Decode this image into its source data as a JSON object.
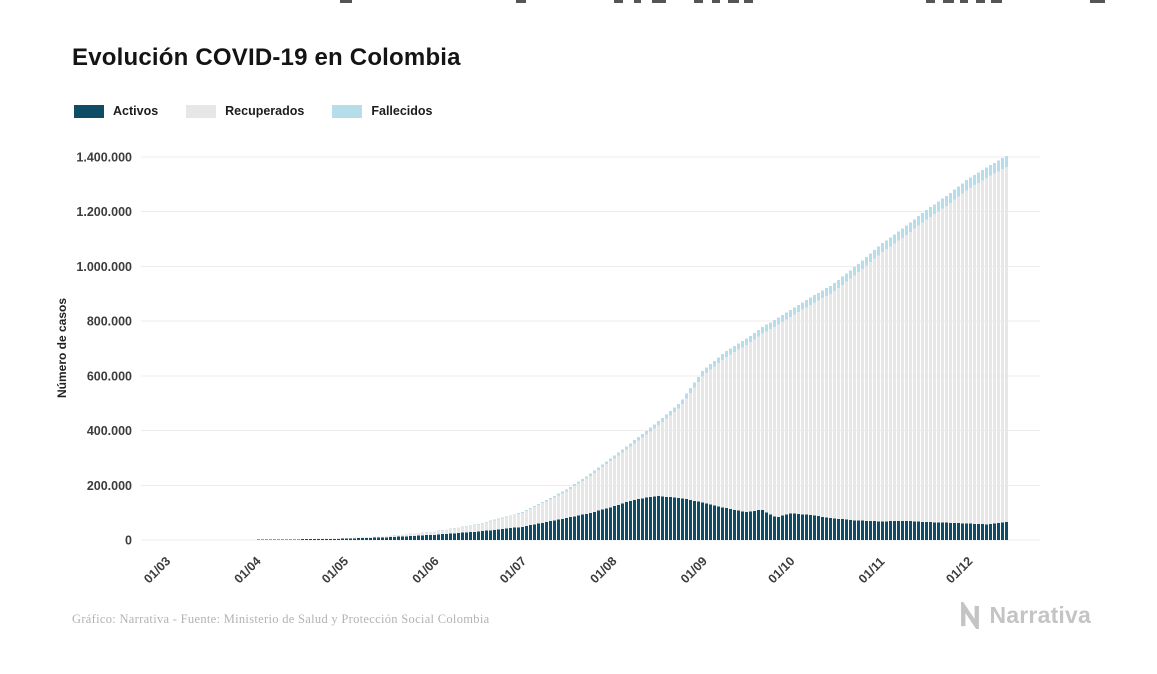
{
  "chart_data": {
    "type": "area",
    "stacked": true,
    "title": "Evolución COVID-19 en Colombia",
    "ylabel": "Número de casos",
    "xlabel": "",
    "x_unit": "fecha (dd/mm) 2020",
    "ylim": [
      0,
      1400000
    ],
    "grid": "horizontal",
    "legend_position": "top-left",
    "legend": [
      {
        "label": "Activos",
        "color": "#0f4d66"
      },
      {
        "label": "Recuperados",
        "color": "#e7e7e7"
      },
      {
        "label": "Fallecidos",
        "color": "#b7dcea"
      }
    ],
    "colors": {
      "activos": "#0f4d66",
      "recuperados": "#e7e7e7",
      "fallecidos": "#b7dcea",
      "grid": "#ececec",
      "axis_text": "#3c3c3c"
    },
    "y_ticks": [
      {
        "value": 0,
        "label": "0"
      },
      {
        "value": 200000,
        "label": "200.000"
      },
      {
        "value": 400000,
        "label": "400.000"
      },
      {
        "value": 600000,
        "label": "600.000"
      },
      {
        "value": 800000,
        "label": "800.000"
      },
      {
        "value": 1000000,
        "label": "1.000.000"
      },
      {
        "value": 1200000,
        "label": "1.200.000"
      },
      {
        "value": 1400000,
        "label": "1.400.000"
      }
    ],
    "x_ticks": [
      {
        "day": 0,
        "label": "01/03"
      },
      {
        "day": 31,
        "label": "01/04"
      },
      {
        "day": 61,
        "label": "01/05"
      },
      {
        "day": 92,
        "label": "01/06"
      },
      {
        "day": 122,
        "label": "01/07"
      },
      {
        "day": 153,
        "label": "01/08"
      },
      {
        "day": 184,
        "label": "01/09"
      },
      {
        "day": 214,
        "label": "01/10"
      },
      {
        "day": 245,
        "label": "01/11"
      },
      {
        "day": 275,
        "label": "01/12"
      }
    ],
    "series_points": [
      {
        "day": 0,
        "activos": 0,
        "recuperados": 0,
        "fallecidos": 0
      },
      {
        "day": 20,
        "activos": 200,
        "recuperados": 30,
        "fallecidos": 10
      },
      {
        "day": 31,
        "activos": 900,
        "recuperados": 120,
        "fallecidos": 35
      },
      {
        "day": 45,
        "activos": 2600,
        "recuperados": 500,
        "fallecidos": 150
      },
      {
        "day": 61,
        "activos": 4800,
        "recuperados": 2200,
        "fallecidos": 340
      },
      {
        "day": 75,
        "activos": 9500,
        "recuperados": 4500,
        "fallecidos": 650
      },
      {
        "day": 92,
        "activos": 19000,
        "recuperados": 11500,
        "fallecidos": 1100
      },
      {
        "day": 107,
        "activos": 31000,
        "recuperados": 26000,
        "fallecidos": 2000
      },
      {
        "day": 122,
        "activos": 48000,
        "recuperados": 50000,
        "fallecidos": 3600
      },
      {
        "day": 137,
        "activos": 80000,
        "recuperados": 97000,
        "fallecidos": 6500
      },
      {
        "day": 145,
        "activos": 98000,
        "recuperados": 134000,
        "fallecidos": 8200
      },
      {
        "day": 153,
        "activos": 122000,
        "recuperados": 172000,
        "fallecidos": 10200
      },
      {
        "day": 160,
        "activos": 146000,
        "recuperados": 203000,
        "fallecidos": 12000
      },
      {
        "day": 168,
        "activos": 161000,
        "recuperados": 253000,
        "fallecidos": 14300
      },
      {
        "day": 176,
        "activos": 154000,
        "recuperados": 330000,
        "fallecidos": 16800
      },
      {
        "day": 184,
        "activos": 137000,
        "recuperados": 464000,
        "fallecidos": 20000
      },
      {
        "day": 192,
        "activos": 116000,
        "recuperados": 554000,
        "fallecidos": 21800
      },
      {
        "day": 199,
        "activos": 102000,
        "recuperados": 612000,
        "fallecidos": 23200
      },
      {
        "day": 204,
        "activos": 111000,
        "recuperados": 641000,
        "fallecidos": 24100
      },
      {
        "day": 209,
        "activos": 82000,
        "recuperados": 701000,
        "fallecidos": 25100
      },
      {
        "day": 214,
        "activos": 98000,
        "recuperados": 718000,
        "fallecidos": 26000
      },
      {
        "day": 221,
        "activos": 91000,
        "recuperados": 770000,
        "fallecidos": 27400
      },
      {
        "day": 228,
        "activos": 80000,
        "recuperados": 822000,
        "fallecidos": 28800
      },
      {
        "day": 236,
        "activos": 72000,
        "recuperados": 896000,
        "fallecidos": 30400
      },
      {
        "day": 245,
        "activos": 68000,
        "recuperados": 981000,
        "fallecidos": 32200
      },
      {
        "day": 253,
        "activos": 70000,
        "recuperados": 1040000,
        "fallecidos": 33800
      },
      {
        "day": 260,
        "activos": 66000,
        "recuperados": 1101000,
        "fallecidos": 35000
      },
      {
        "day": 268,
        "activos": 63000,
        "recuperados": 1163000,
        "fallecidos": 36300
      },
      {
        "day": 275,
        "activos": 60000,
        "recuperados": 1224000,
        "fallecidos": 37600
      },
      {
        "day": 282,
        "activos": 57000,
        "recuperados": 1272000,
        "fallecidos": 38700
      },
      {
        "day": 289,
        "activos": 68000,
        "recuperados": 1302000,
        "fallecidos": 40000
      }
    ]
  },
  "footer": {
    "caption": "Gráfico: Narrativa - Fuente: Ministerio de Salud y Protección Social Colombia",
    "logo_text": "Narrativa"
  }
}
